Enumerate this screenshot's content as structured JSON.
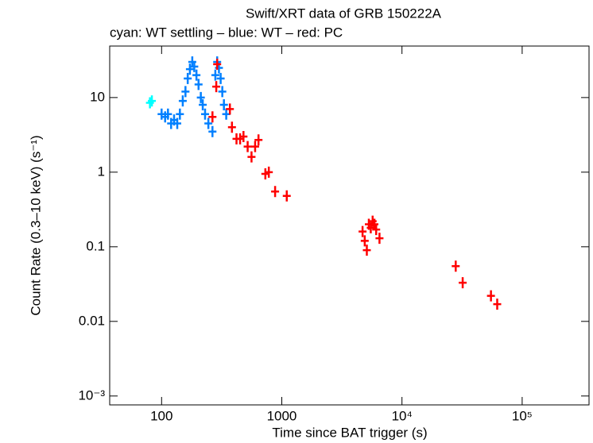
{
  "chart_data": {
    "type": "scatter",
    "title": "Swift/XRT data of GRB 150222A",
    "subtitle": "cyan: WT settling – blue: WT – red: PC",
    "x_label": "Time since BAT trigger (s)",
    "y_label": "Count Rate (0.3–10 keV) (s⁻¹)",
    "xscale": "log",
    "yscale": "log",
    "xlim": [
      37,
      360000
    ],
    "ylim": [
      0.00076,
      49
    ],
    "xticks": [
      100,
      1000,
      {
        "value": 10000,
        "label": "10⁴"
      },
      {
        "value": 100000,
        "label": "10⁵"
      }
    ],
    "yticks": [
      {
        "value": 0.001,
        "label": "10⁻³"
      },
      0.01,
      0.1,
      1,
      10
    ],
    "series": [
      {
        "color": "#00ffff",
        "x": [
          80,
          83
        ],
        "values": [
          8.5,
          9
        ]
      },
      {
        "color": "#0080ff",
        "x": [
          100,
          107,
          113,
          120,
          127,
          135,
          142,
          150,
          158,
          165,
          172,
          180,
          187,
          195,
          203,
          212,
          220,
          230,
          245,
          265,
          280,
          290,
          300,
          310,
          320,
          330,
          345
        ],
        "values": [
          6,
          5.5,
          6,
          4.5,
          5,
          4.5,
          6,
          9,
          12,
          18,
          24,
          30,
          26,
          20,
          15,
          10,
          8,
          6,
          4.5,
          3.5,
          20,
          30,
          25,
          18,
          12,
          8,
          6
        ]
      },
      {
        "color": "#ff0000",
        "x": [
          265,
          285,
          290,
          370,
          385,
          420,
          450,
          480,
          520,
          560,
          600,
          640,
          730,
          780,
          880,
          1100,
          4700,
          4900,
          5100,
          5300,
          5500,
          5700,
          5900,
          6100,
          6500,
          28000,
          32000,
          55000,
          62000
        ],
        "values": [
          5.5,
          14,
          28,
          7,
          4,
          2.8,
          2.8,
          3,
          2.2,
          1.6,
          2.2,
          2.7,
          0.95,
          1,
          0.55,
          0.48,
          0.16,
          0.12,
          0.09,
          0.2,
          0.18,
          0.22,
          0.2,
          0.17,
          0.13,
          0.055,
          0.033,
          0.022,
          0.017
        ]
      }
    ]
  }
}
